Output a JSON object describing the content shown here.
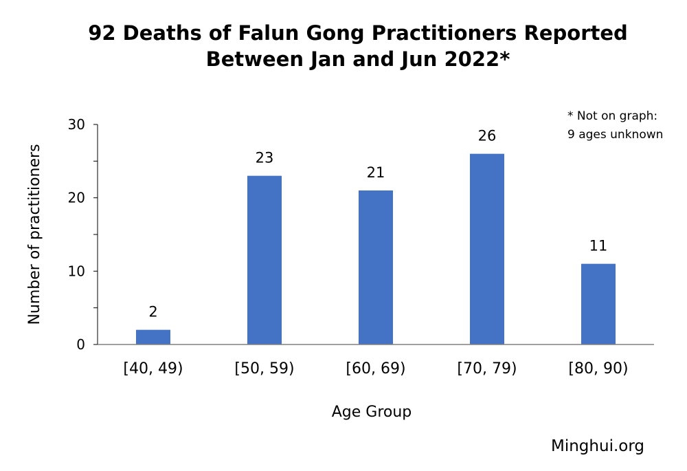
{
  "chart_data": {
    "type": "bar",
    "title": [
      "92 Deaths of Falun Gong Practitioners Reported",
      "Between Jan and Jun 2022*"
    ],
    "categories": [
      "[40, 49)",
      "[50, 59)",
      "[60, 69)",
      "[70, 79)",
      "[80, 90)"
    ],
    "values": [
      2,
      23,
      21,
      26,
      11
    ],
    "xlabel": "Age Group",
    "ylabel": "Number of practitioners",
    "ylim": [
      0,
      30
    ],
    "yticks": [
      0,
      10,
      20,
      30
    ],
    "grid": false,
    "bar_color": "#4472C4",
    "annotation": [
      "* Not on graph:",
      "9 ages unknown"
    ],
    "source": "Minghui.org"
  }
}
